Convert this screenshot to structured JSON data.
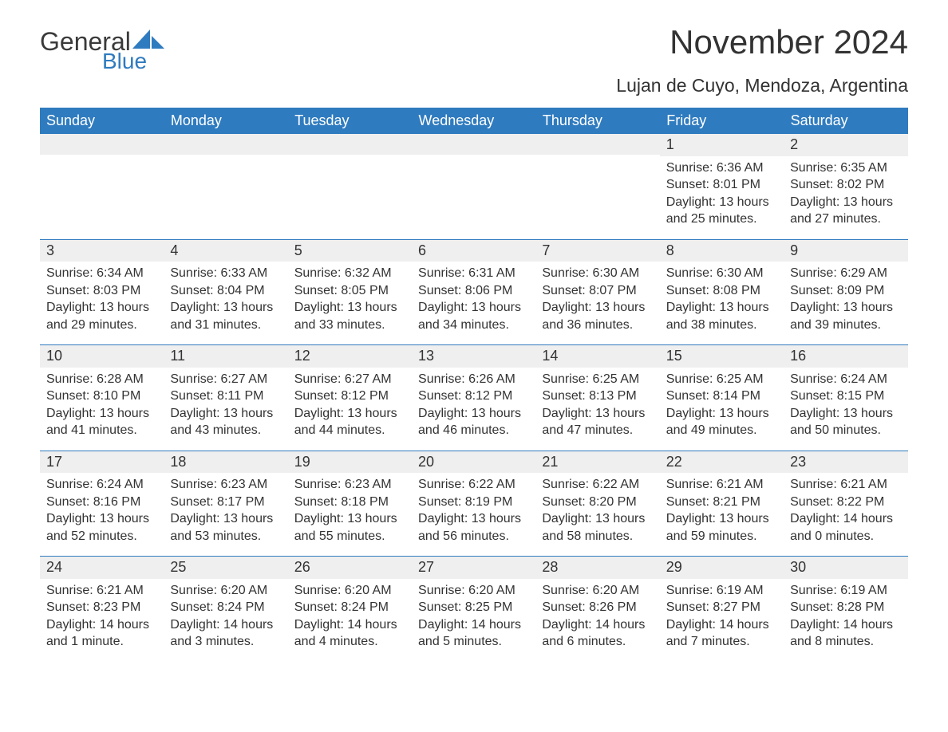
{
  "brand": {
    "main": "General",
    "sub": "Blue",
    "main_color": "#3a3a3a",
    "sub_color": "#2f7bbf"
  },
  "title": "November 2024",
  "location": "Lujan de Cuyo, Mendoza, Argentina",
  "style": {
    "header_bg": "#2f7bbf",
    "header_text": "#ffffff",
    "strip_bg": "#efefef",
    "body_bg": "#ffffff",
    "text_color": "#333333",
    "rule_color": "#2f7bbf",
    "title_fontsize": 42,
    "location_fontsize": 23,
    "header_fontsize": 18,
    "daynum_fontsize": 18,
    "body_fontsize": 16
  },
  "weekdays": [
    "Sunday",
    "Monday",
    "Tuesday",
    "Wednesday",
    "Thursday",
    "Friday",
    "Saturday"
  ],
  "weeks": [
    [
      null,
      null,
      null,
      null,
      null,
      {
        "n": "1",
        "sunrise": "Sunrise: 6:36 AM",
        "sunset": "Sunset: 8:01 PM",
        "daylight": "Daylight: 13 hours and 25 minutes."
      },
      {
        "n": "2",
        "sunrise": "Sunrise: 6:35 AM",
        "sunset": "Sunset: 8:02 PM",
        "daylight": "Daylight: 13 hours and 27 minutes."
      }
    ],
    [
      {
        "n": "3",
        "sunrise": "Sunrise: 6:34 AM",
        "sunset": "Sunset: 8:03 PM",
        "daylight": "Daylight: 13 hours and 29 minutes."
      },
      {
        "n": "4",
        "sunrise": "Sunrise: 6:33 AM",
        "sunset": "Sunset: 8:04 PM",
        "daylight": "Daylight: 13 hours and 31 minutes."
      },
      {
        "n": "5",
        "sunrise": "Sunrise: 6:32 AM",
        "sunset": "Sunset: 8:05 PM",
        "daylight": "Daylight: 13 hours and 33 minutes."
      },
      {
        "n": "6",
        "sunrise": "Sunrise: 6:31 AM",
        "sunset": "Sunset: 8:06 PM",
        "daylight": "Daylight: 13 hours and 34 minutes."
      },
      {
        "n": "7",
        "sunrise": "Sunrise: 6:30 AM",
        "sunset": "Sunset: 8:07 PM",
        "daylight": "Daylight: 13 hours and 36 minutes."
      },
      {
        "n": "8",
        "sunrise": "Sunrise: 6:30 AM",
        "sunset": "Sunset: 8:08 PM",
        "daylight": "Daylight: 13 hours and 38 minutes."
      },
      {
        "n": "9",
        "sunrise": "Sunrise: 6:29 AM",
        "sunset": "Sunset: 8:09 PM",
        "daylight": "Daylight: 13 hours and 39 minutes."
      }
    ],
    [
      {
        "n": "10",
        "sunrise": "Sunrise: 6:28 AM",
        "sunset": "Sunset: 8:10 PM",
        "daylight": "Daylight: 13 hours and 41 minutes."
      },
      {
        "n": "11",
        "sunrise": "Sunrise: 6:27 AM",
        "sunset": "Sunset: 8:11 PM",
        "daylight": "Daylight: 13 hours and 43 minutes."
      },
      {
        "n": "12",
        "sunrise": "Sunrise: 6:27 AM",
        "sunset": "Sunset: 8:12 PM",
        "daylight": "Daylight: 13 hours and 44 minutes."
      },
      {
        "n": "13",
        "sunrise": "Sunrise: 6:26 AM",
        "sunset": "Sunset: 8:12 PM",
        "daylight": "Daylight: 13 hours and 46 minutes."
      },
      {
        "n": "14",
        "sunrise": "Sunrise: 6:25 AM",
        "sunset": "Sunset: 8:13 PM",
        "daylight": "Daylight: 13 hours and 47 minutes."
      },
      {
        "n": "15",
        "sunrise": "Sunrise: 6:25 AM",
        "sunset": "Sunset: 8:14 PM",
        "daylight": "Daylight: 13 hours and 49 minutes."
      },
      {
        "n": "16",
        "sunrise": "Sunrise: 6:24 AM",
        "sunset": "Sunset: 8:15 PM",
        "daylight": "Daylight: 13 hours and 50 minutes."
      }
    ],
    [
      {
        "n": "17",
        "sunrise": "Sunrise: 6:24 AM",
        "sunset": "Sunset: 8:16 PM",
        "daylight": "Daylight: 13 hours and 52 minutes."
      },
      {
        "n": "18",
        "sunrise": "Sunrise: 6:23 AM",
        "sunset": "Sunset: 8:17 PM",
        "daylight": "Daylight: 13 hours and 53 minutes."
      },
      {
        "n": "19",
        "sunrise": "Sunrise: 6:23 AM",
        "sunset": "Sunset: 8:18 PM",
        "daylight": "Daylight: 13 hours and 55 minutes."
      },
      {
        "n": "20",
        "sunrise": "Sunrise: 6:22 AM",
        "sunset": "Sunset: 8:19 PM",
        "daylight": "Daylight: 13 hours and 56 minutes."
      },
      {
        "n": "21",
        "sunrise": "Sunrise: 6:22 AM",
        "sunset": "Sunset: 8:20 PM",
        "daylight": "Daylight: 13 hours and 58 minutes."
      },
      {
        "n": "22",
        "sunrise": "Sunrise: 6:21 AM",
        "sunset": "Sunset: 8:21 PM",
        "daylight": "Daylight: 13 hours and 59 minutes."
      },
      {
        "n": "23",
        "sunrise": "Sunrise: 6:21 AM",
        "sunset": "Sunset: 8:22 PM",
        "daylight": "Daylight: 14 hours and 0 minutes."
      }
    ],
    [
      {
        "n": "24",
        "sunrise": "Sunrise: 6:21 AM",
        "sunset": "Sunset: 8:23 PM",
        "daylight": "Daylight: 14 hours and 1 minute."
      },
      {
        "n": "25",
        "sunrise": "Sunrise: 6:20 AM",
        "sunset": "Sunset: 8:24 PM",
        "daylight": "Daylight: 14 hours and 3 minutes."
      },
      {
        "n": "26",
        "sunrise": "Sunrise: 6:20 AM",
        "sunset": "Sunset: 8:24 PM",
        "daylight": "Daylight: 14 hours and 4 minutes."
      },
      {
        "n": "27",
        "sunrise": "Sunrise: 6:20 AM",
        "sunset": "Sunset: 8:25 PM",
        "daylight": "Daylight: 14 hours and 5 minutes."
      },
      {
        "n": "28",
        "sunrise": "Sunrise: 6:20 AM",
        "sunset": "Sunset: 8:26 PM",
        "daylight": "Daylight: 14 hours and 6 minutes."
      },
      {
        "n": "29",
        "sunrise": "Sunrise: 6:19 AM",
        "sunset": "Sunset: 8:27 PM",
        "daylight": "Daylight: 14 hours and 7 minutes."
      },
      {
        "n": "30",
        "sunrise": "Sunrise: 6:19 AM",
        "sunset": "Sunset: 8:28 PM",
        "daylight": "Daylight: 14 hours and 8 minutes."
      }
    ]
  ]
}
